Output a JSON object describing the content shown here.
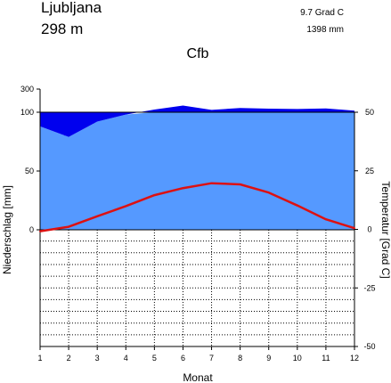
{
  "station": {
    "name": "Ljubljana",
    "elevation": "298  m",
    "mean_temperature": "9.7 Grad C",
    "annual_precipitation": "1398 mm",
    "climate_class": "Cfb"
  },
  "chart_data": {
    "type": "line",
    "title": "Cfb",
    "xlabel": "Monat",
    "ylabel_left": "Niederschlag [mm]",
    "ylabel_right": "Temperatur [Grad C]",
    "categories": [
      "1",
      "2",
      "3",
      "4",
      "5",
      "6",
      "7",
      "8",
      "9",
      "10",
      "11",
      "12"
    ],
    "x_range": [
      1,
      12
    ],
    "precip_ticks": [
      "300",
      "100",
      "50",
      "0"
    ],
    "temp_ticks": [
      "50",
      "25",
      "0",
      "-25",
      "-50"
    ],
    "temp_range": [
      -50,
      50
    ],
    "precip_scale": "0-100 mm linear, 100-300 mm compressed",
    "grid": true,
    "series": [
      {
        "axis": "left",
        "values": [
          88,
          79,
          92,
          98,
          123,
          158,
          120,
          137,
          131,
          128,
          133,
          113
        ],
        "color": "#5599ff",
        "excess_color": "#0000ee"
      },
      {
        "axis": "right",
        "values": [
          -0.8,
          1.1,
          5.6,
          9.9,
          14.6,
          17.6,
          19.7,
          19.2,
          15.7,
          10.2,
          4.3,
          0.5
        ],
        "color": "#dd1111"
      }
    ]
  }
}
